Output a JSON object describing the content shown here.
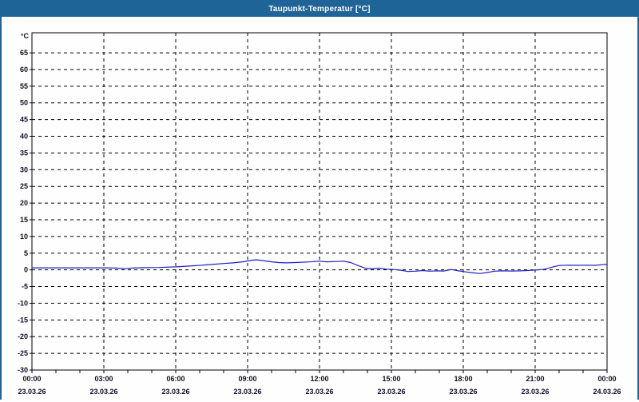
{
  "window": {
    "title": "Taupunkt-Temperatur [°C]"
  },
  "colors": {
    "titlebar": "#1F6496",
    "window_border": "#1F6496",
    "plot_border": "#000000",
    "grid": "#000000",
    "axis_text": "#101024",
    "series_line": "#2020BE",
    "plot_bg": "#fdfefd"
  },
  "chart_data": {
    "type": "line",
    "title": "Taupunkt-Temperatur [°C]",
    "unit_label": "°C",
    "grid": "dashed",
    "legend": "none",
    "y_axis": {
      "min": -30,
      "max": 71,
      "tick_step": 5,
      "tick_min": -30,
      "tick_max": 65
    },
    "x_axis": {
      "span_hours": 24,
      "major_step_hours": 3,
      "minor_step_hours": 1,
      "tick_labels": [
        {
          "time": "00:00",
          "date": "23.03.26"
        },
        {
          "time": "03:00",
          "date": "23.03.26"
        },
        {
          "time": "06:00",
          "date": "23.03.26"
        },
        {
          "time": "09:00",
          "date": "23.03.26"
        },
        {
          "time": "12:00",
          "date": "23.03.26"
        },
        {
          "time": "15:00",
          "date": "23.03.26"
        },
        {
          "time": "18:00",
          "date": "23.03.26"
        },
        {
          "time": "21:00",
          "date": "23.03.26"
        },
        {
          "time": "00:00",
          "date": "24.03.26"
        }
      ]
    },
    "series": [
      {
        "name": "Taupunkt",
        "color": "#2020BE",
        "points": [
          [
            0,
            0.6
          ],
          [
            0.5,
            0.6
          ],
          [
            1,
            0.6
          ],
          [
            1.5,
            0.6
          ],
          [
            2,
            0.6
          ],
          [
            2.5,
            0.6
          ],
          [
            3,
            0.6
          ],
          [
            3.5,
            0.55
          ],
          [
            3.9,
            0.35
          ],
          [
            4.2,
            0.55
          ],
          [
            4.7,
            0.65
          ],
          [
            5.3,
            0.7
          ],
          [
            6,
            0.9
          ],
          [
            6.7,
            1.2
          ],
          [
            7.3,
            1.5
          ],
          [
            8,
            1.9
          ],
          [
            8.4,
            2.1
          ],
          [
            8.8,
            2.4
          ],
          [
            9.2,
            2.9
          ],
          [
            9.4,
            3.0
          ],
          [
            9.7,
            2.7
          ],
          [
            10.0,
            2.4
          ],
          [
            10.3,
            2.2
          ],
          [
            10.6,
            2.1
          ],
          [
            11,
            2.2
          ],
          [
            11.5,
            2.35
          ],
          [
            12,
            2.6
          ],
          [
            12.3,
            2.4
          ],
          [
            12.7,
            2.5
          ],
          [
            13,
            2.6
          ],
          [
            13.3,
            2.2
          ],
          [
            13.6,
            1.3
          ],
          [
            13.9,
            0.5
          ],
          [
            14.2,
            0.3
          ],
          [
            14.5,
            0.5
          ],
          [
            14.8,
            0.2
          ],
          [
            15.1,
            0.1
          ],
          [
            15.4,
            -0.1
          ],
          [
            15.7,
            -0.5
          ],
          [
            16,
            -0.4
          ],
          [
            16.3,
            -0.2
          ],
          [
            16.6,
            -0.4
          ],
          [
            16.9,
            -0.3
          ],
          [
            17.2,
            -0.35
          ],
          [
            17.5,
            0.1
          ],
          [
            17.8,
            -0.3
          ],
          [
            18.1,
            -0.6
          ],
          [
            18.4,
            -0.9
          ],
          [
            18.7,
            -1.1
          ],
          [
            19,
            -0.8
          ],
          [
            19.3,
            -0.4
          ],
          [
            19.6,
            -0.3
          ],
          [
            20,
            -0.35
          ],
          [
            20.4,
            -0.3
          ],
          [
            20.8,
            -0.15
          ],
          [
            21.1,
            0.0
          ],
          [
            21.4,
            0.2
          ],
          [
            21.7,
            0.8
          ],
          [
            22,
            1.3
          ],
          [
            22.4,
            1.4
          ],
          [
            22.8,
            1.35
          ],
          [
            23.2,
            1.4
          ],
          [
            23.5,
            1.35
          ],
          [
            23.8,
            1.55
          ],
          [
            24,
            1.7
          ]
        ]
      }
    ]
  }
}
